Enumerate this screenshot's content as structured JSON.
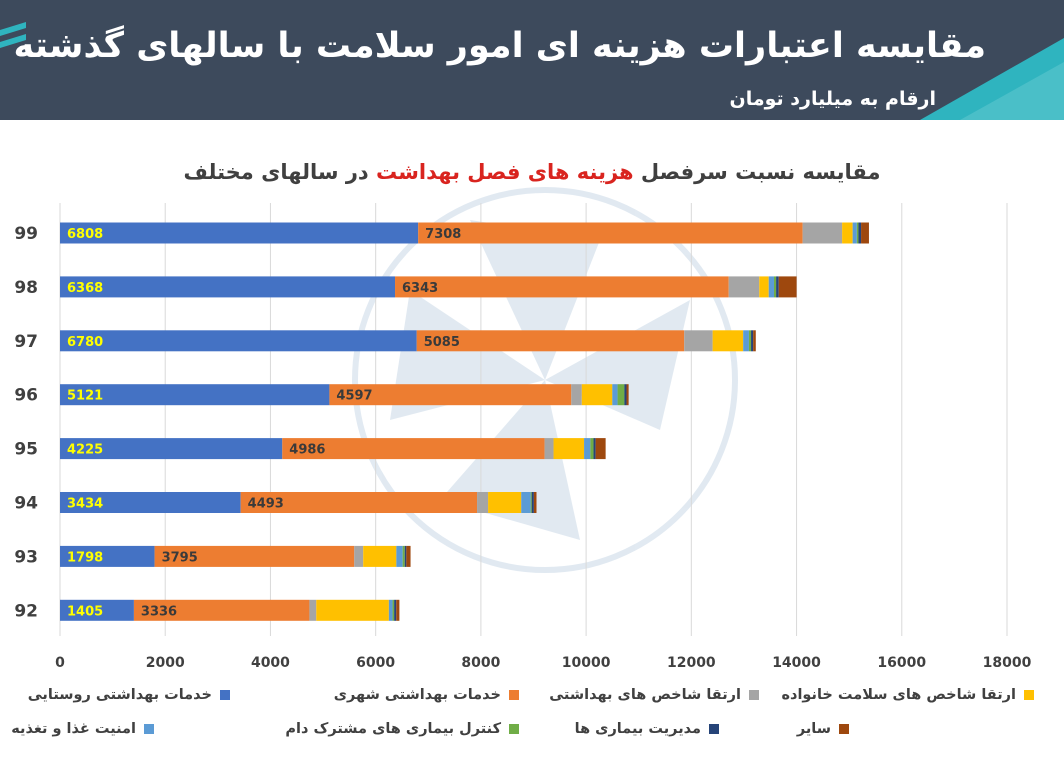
{
  "header": {
    "title": "مقایسه اعتبارات هزینه ای امور سلامت با سالهای گذشته",
    "subtitle": "ارقام به میلیارد تومان"
  },
  "chart_title": {
    "before": "مقایسه نسبت سرفصل",
    "highlight": "هزینه های فصل بهداشت",
    "after": "در سالهای مختلف"
  },
  "colors": {
    "header_bg": "#3d4a5c",
    "accent": "#2fb4bf",
    "title_highlight": "#d9241f"
  },
  "chart_data": {
    "type": "bar",
    "orientation": "horizontal",
    "stacked": true,
    "categories": [
      "99",
      "98",
      "97",
      "96",
      "95",
      "94",
      "93",
      "92"
    ],
    "xlim": [
      0,
      18000
    ],
    "xticks": [
      0,
      2000,
      4000,
      6000,
      8000,
      10000,
      12000,
      14000,
      16000,
      18000
    ],
    "grid": true,
    "legend_position": "bottom",
    "data_labels_on": [
      "خدمات بهداشتی روستایی",
      "خدمات بهداشتی شهری"
    ],
    "series": [
      {
        "name": "خدمات بهداشتی روستایی",
        "color": "#4472c4",
        "values": [
          6808,
          6368,
          6780,
          5121,
          4225,
          3434,
          1798,
          1405
        ]
      },
      {
        "name": "خدمات بهداشتی شهری",
        "color": "#ed7d31",
        "values": [
          7308,
          6343,
          5085,
          4597,
          4986,
          4493,
          3795,
          3336
        ]
      },
      {
        "name": "ارتقا شاخص های بهداشتی",
        "color": "#a5a5a5",
        "values": [
          750,
          580,
          540,
          200,
          170,
          210,
          170,
          130
        ]
      },
      {
        "name": "ارتقا شاخص های سلامت خانواده",
        "color": "#ffc000",
        "values": [
          200,
          180,
          580,
          580,
          580,
          630,
          630,
          1380
        ]
      },
      {
        "name": "امنیت غذا و تغذیه",
        "color": "#5b9bd5",
        "values": [
          80,
          100,
          110,
          100,
          120,
          180,
          120,
          70
        ]
      },
      {
        "name": "کنترل بیماری های مشترک دام",
        "color": "#70ad47",
        "values": [
          30,
          40,
          40,
          130,
          60,
          20,
          40,
          30
        ]
      },
      {
        "name": "مدیریت بیماری ها",
        "color": "#264478",
        "values": [
          50,
          50,
          40,
          40,
          40,
          40,
          30,
          40
        ]
      },
      {
        "name": "سایر",
        "color": "#9e480e",
        "values": [
          150,
          340,
          50,
          40,
          190,
          50,
          80,
          60
        ]
      }
    ]
  }
}
